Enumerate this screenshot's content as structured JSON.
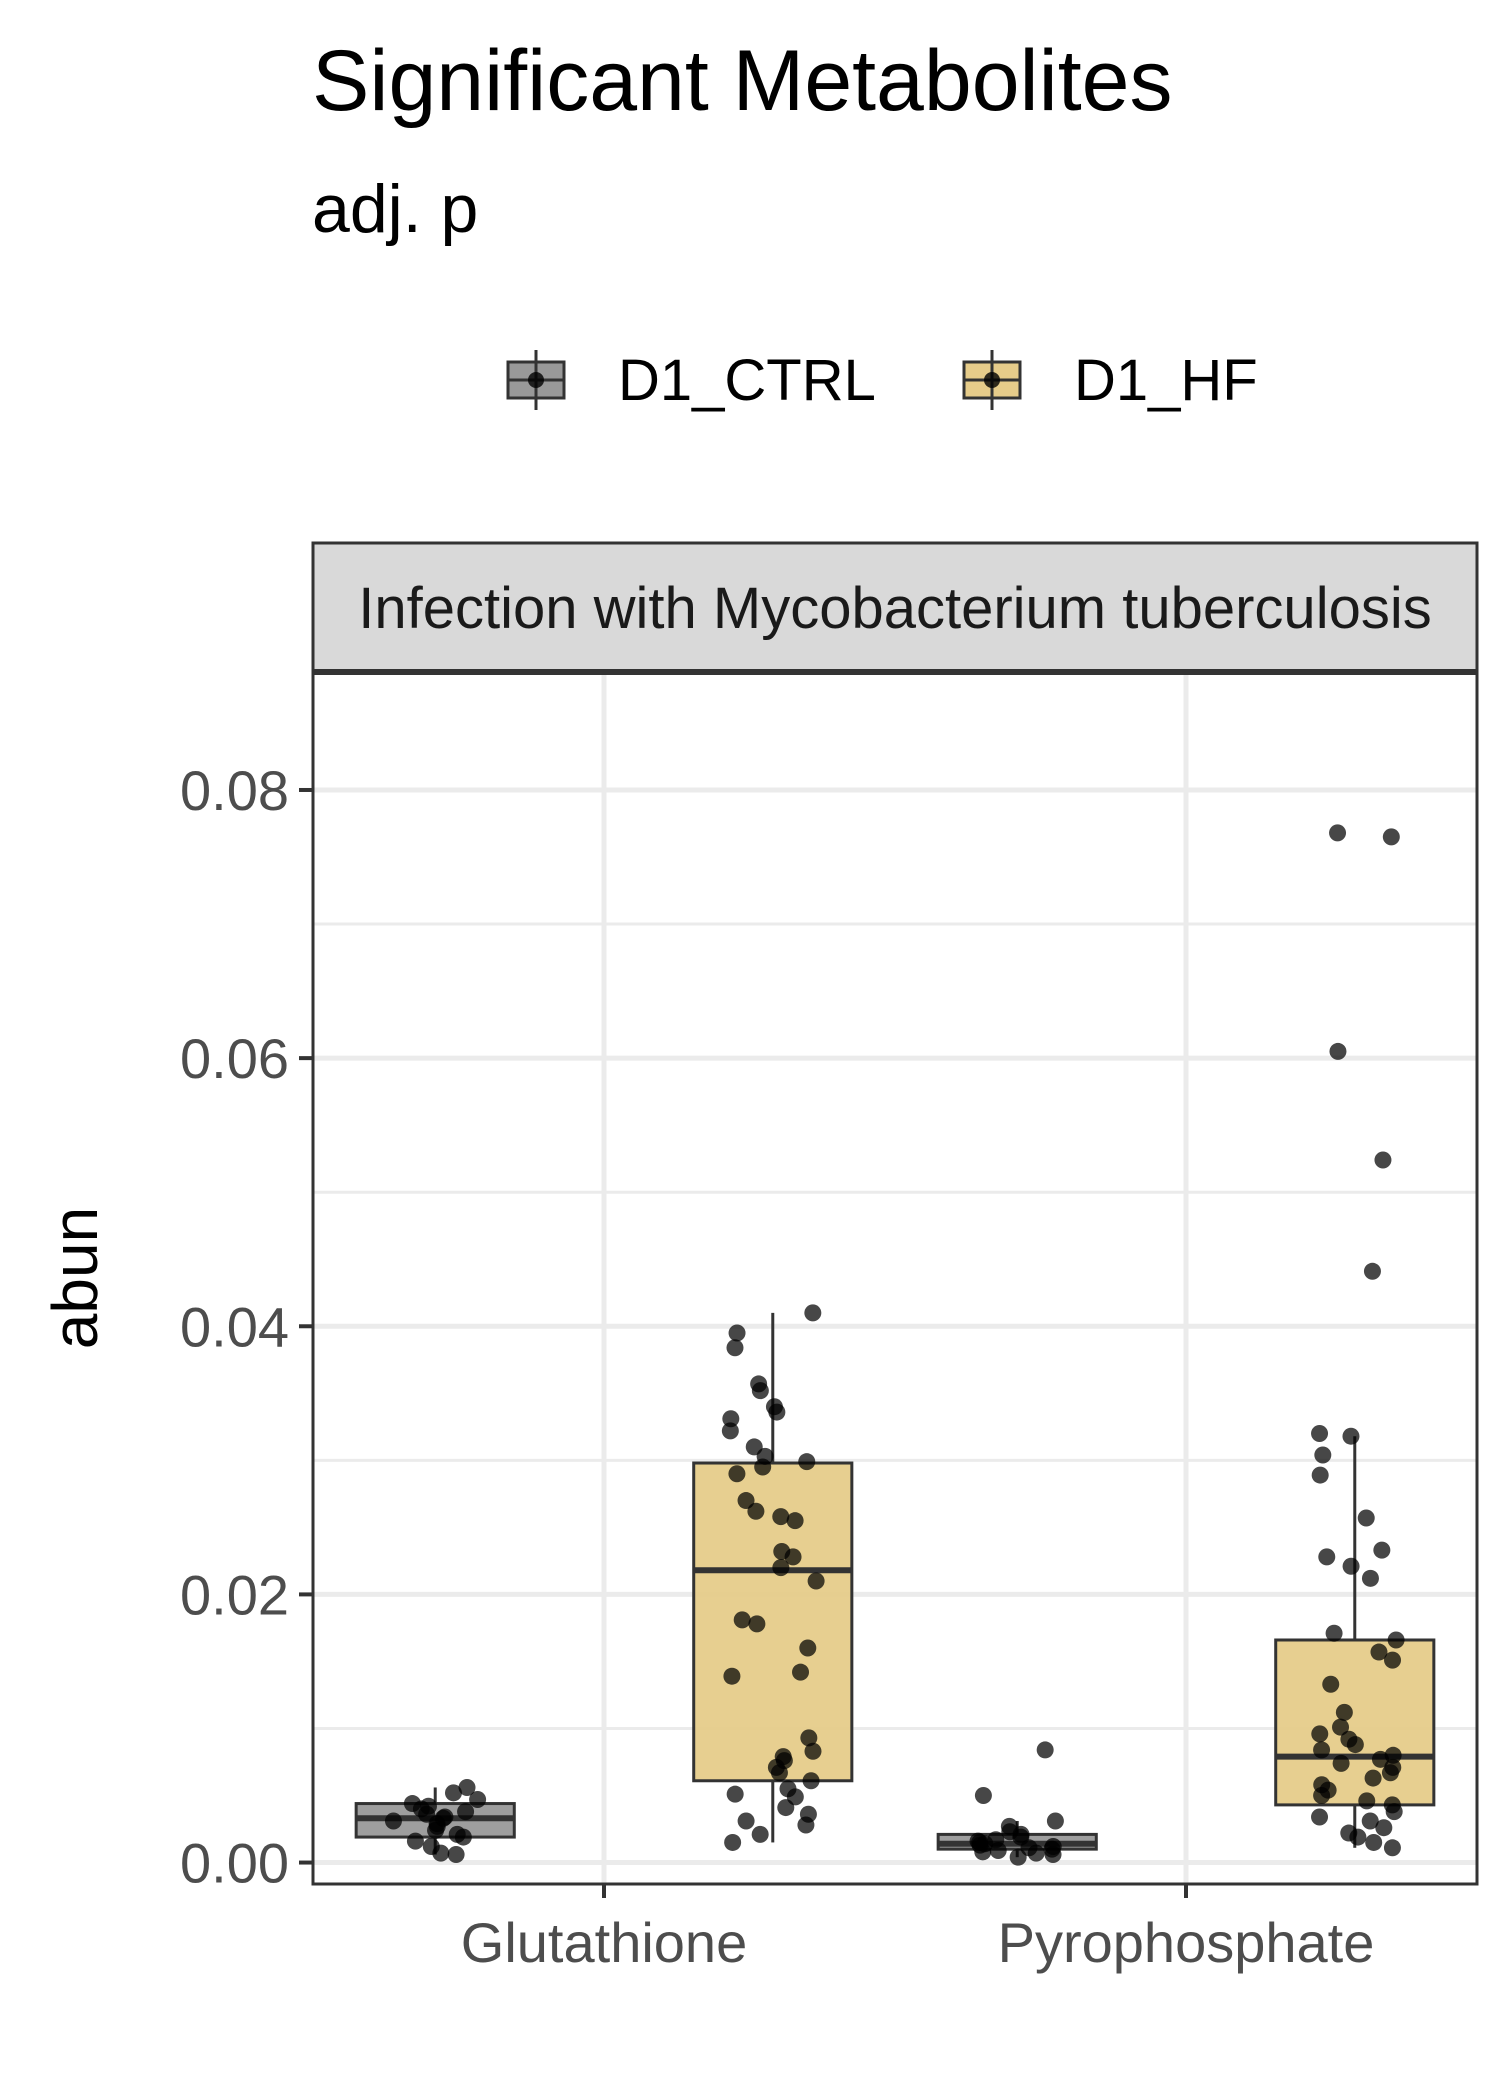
{
  "title": "Significant Metabolites",
  "subtitle": "adj. p",
  "chart_data": {
    "type": "boxplot",
    "facet_label": "Infection with Mycobacterium tuberculosis",
    "xlabel": "",
    "ylabel": "abun",
    "ylim": [
      -0.0016,
      0.0888
    ],
    "yticks": [
      0.0,
      0.02,
      0.04,
      0.06,
      0.08
    ],
    "ytick_labels": [
      "0.00",
      "0.02",
      "0.04",
      "0.06",
      "0.08"
    ],
    "categories": [
      "Glutathione",
      "Pyrophosphate"
    ],
    "legend_position": "top",
    "grid": true,
    "groups": [
      {
        "name": "D1_CTRL",
        "color": "#999999"
      },
      {
        "name": "D1_HF",
        "color": "#E6CC8A"
      }
    ],
    "boxes": [
      {
        "category": "Glutathione",
        "group": "D1_CTRL",
        "q1": 0.0019,
        "median": 0.0033,
        "q3": 0.0044,
        "whisker_low": 0.0006,
        "whisker_high": 0.0056,
        "points": [
          0.0006,
          0.0007,
          0.0012,
          0.0016,
          0.0019,
          0.0021,
          0.0024,
          0.0027,
          0.0029,
          0.0031,
          0.0033,
          0.0034,
          0.0036,
          0.0038,
          0.004,
          0.0042,
          0.0044,
          0.0047,
          0.0052,
          0.0056
        ]
      },
      {
        "category": "Glutathione",
        "group": "D1_HF",
        "q1": 0.0061,
        "median": 0.0218,
        "q3": 0.0298,
        "whisker_low": 0.0015,
        "whisker_high": 0.041,
        "points": [
          0.0015,
          0.0021,
          0.0028,
          0.0031,
          0.0036,
          0.0041,
          0.0049,
          0.0051,
          0.0055,
          0.0061,
          0.0067,
          0.0071,
          0.0076,
          0.0079,
          0.0083,
          0.0093,
          0.0139,
          0.0142,
          0.016,
          0.0178,
          0.0181,
          0.021,
          0.022,
          0.0228,
          0.0232,
          0.0255,
          0.0258,
          0.0262,
          0.027,
          0.029,
          0.0295,
          0.0299,
          0.0303,
          0.031,
          0.0322,
          0.0331,
          0.0336,
          0.034,
          0.0352,
          0.0357,
          0.0384,
          0.0395,
          0.041
        ]
      },
      {
        "category": "Pyrophosphate",
        "group": "D1_CTRL",
        "q1": 0.001,
        "median": 0.0014,
        "q3": 0.0021,
        "whisker_low": 0.0004,
        "whisker_high": 0.0031,
        "points": [
          0.0004,
          0.0006,
          0.0007,
          0.0008,
          0.0009,
          0.001,
          0.0011,
          0.0012,
          0.0013,
          0.0014,
          0.0015,
          0.0016,
          0.0017,
          0.0019,
          0.0021,
          0.0023,
          0.0027,
          0.0031,
          0.005,
          0.0084
        ]
      },
      {
        "category": "Pyrophosphate",
        "group": "D1_HF",
        "q1": 0.0043,
        "median": 0.0079,
        "q3": 0.0166,
        "whisker_low": 0.0011,
        "whisker_high": 0.0318,
        "points": [
          0.0011,
          0.0015,
          0.0019,
          0.0022,
          0.0026,
          0.0031,
          0.0034,
          0.0038,
          0.0043,
          0.0046,
          0.005,
          0.0054,
          0.0058,
          0.0063,
          0.0067,
          0.0071,
          0.0074,
          0.0077,
          0.008,
          0.0084,
          0.0088,
          0.0092,
          0.0096,
          0.0101,
          0.0112,
          0.0133,
          0.0151,
          0.0157,
          0.0166,
          0.0171,
          0.0212,
          0.0221,
          0.0228,
          0.0233,
          0.0257,
          0.0289,
          0.0304,
          0.0318,
          0.032,
          0.0441,
          0.0524,
          0.0605,
          0.0765,
          0.0768
        ]
      }
    ]
  }
}
